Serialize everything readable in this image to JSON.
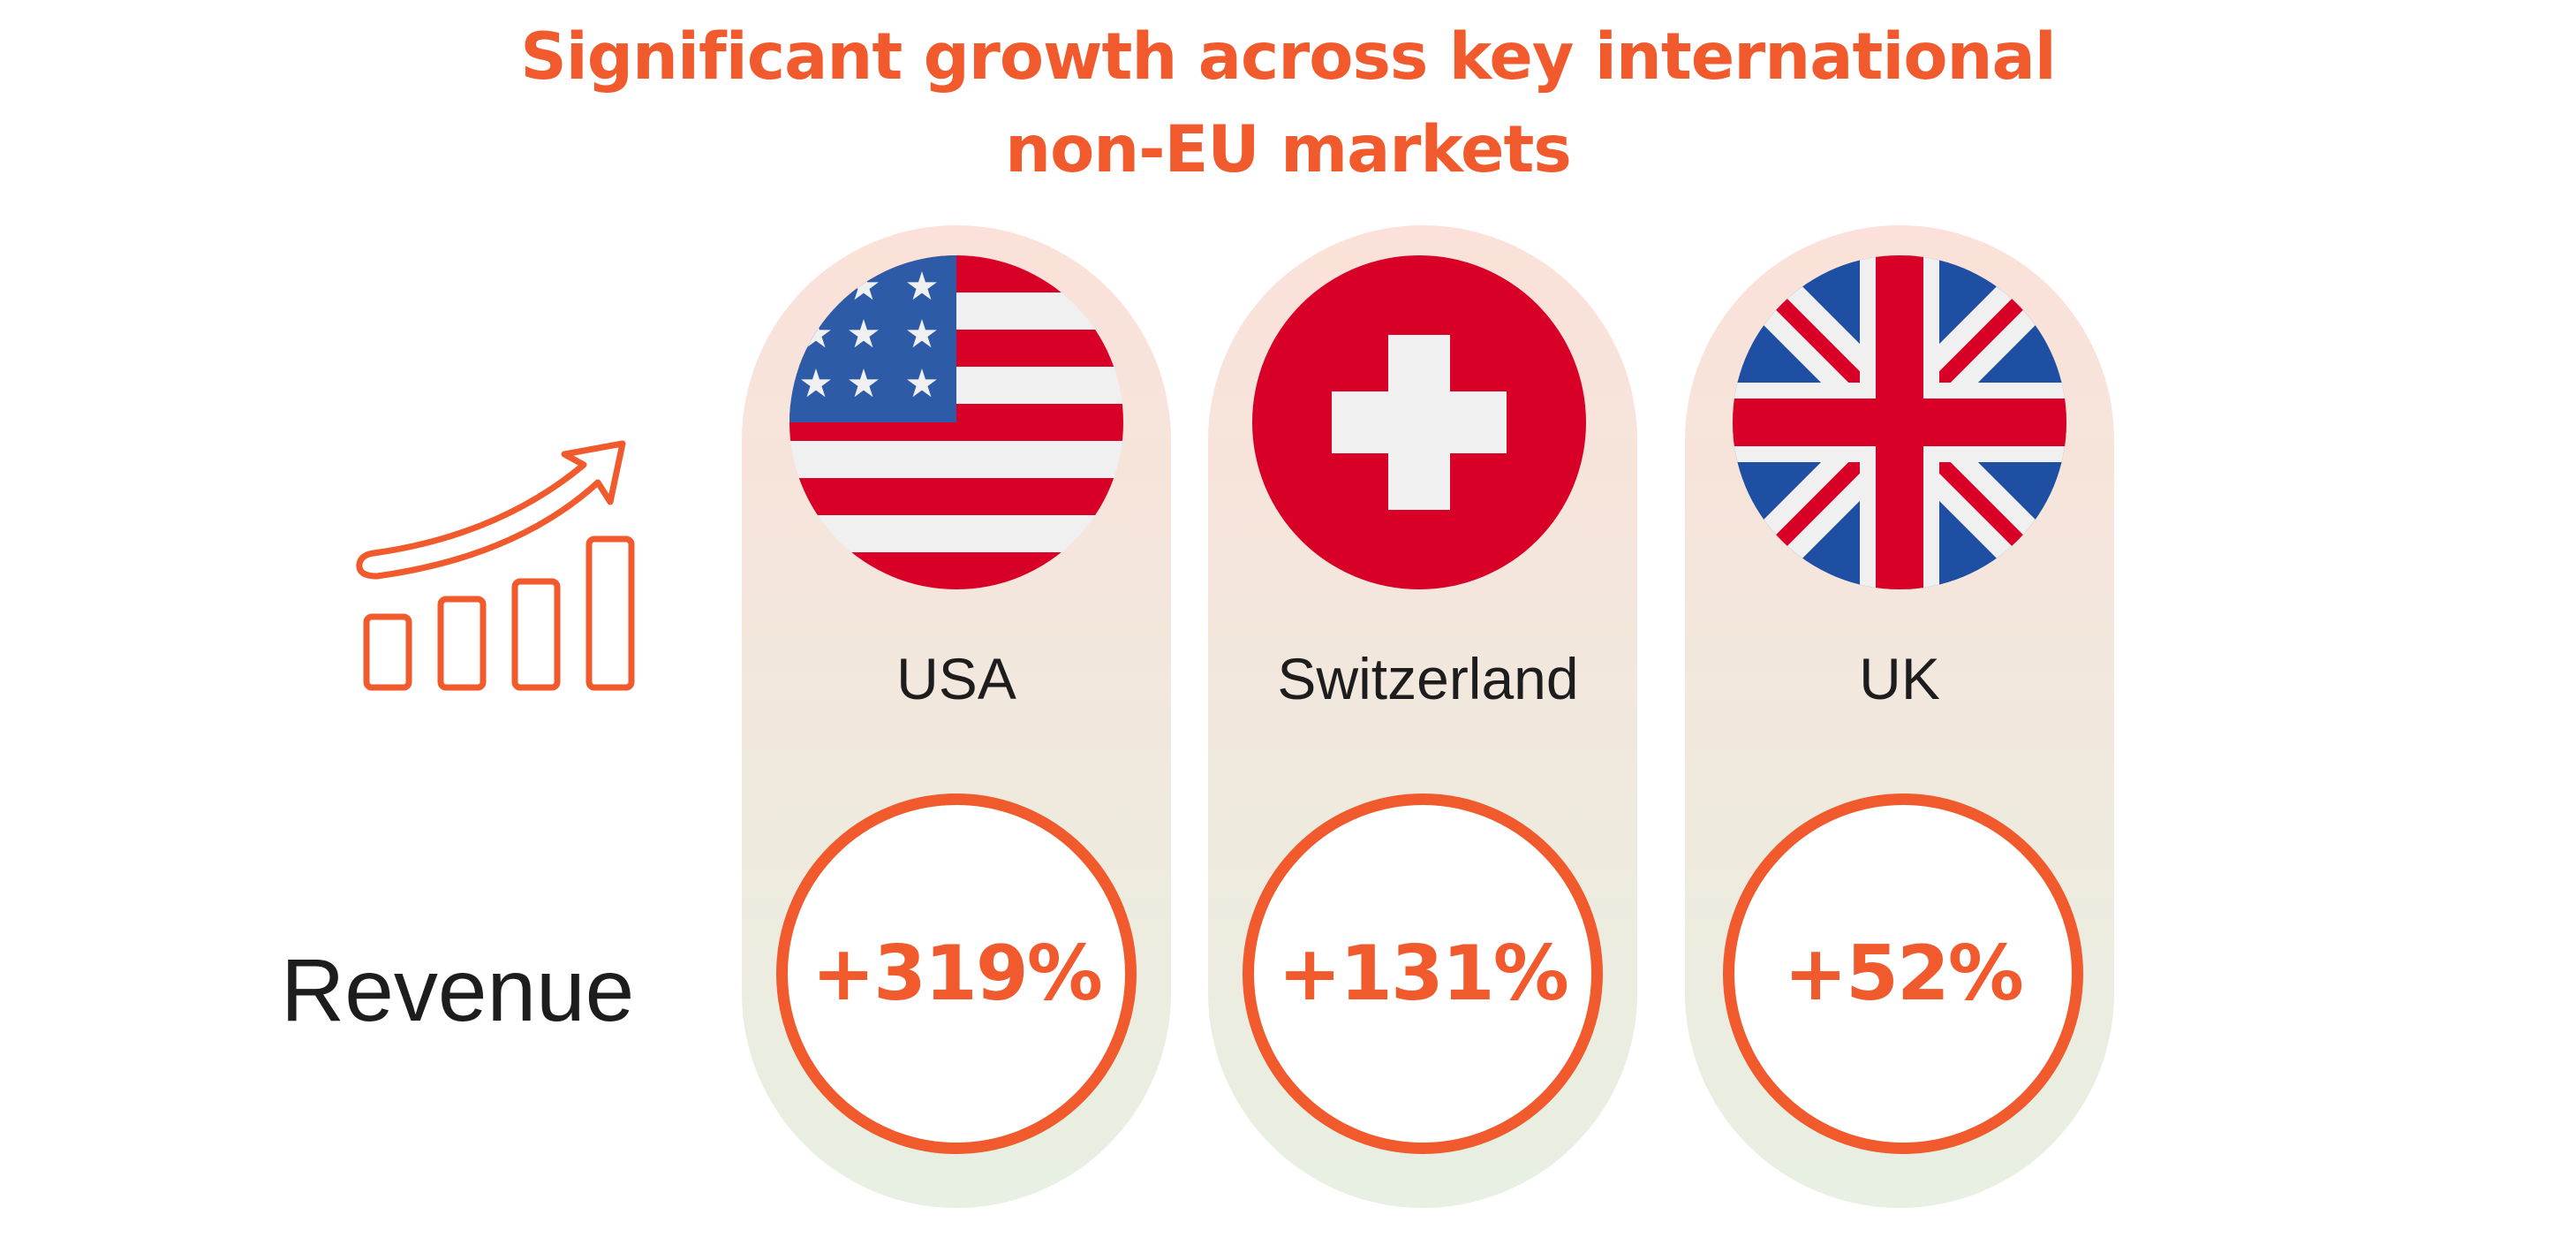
{
  "title": {
    "line1": "Significant growth across key international",
    "line2": "non-EU markets"
  },
  "row_label": "Revenue",
  "markets": [
    {
      "country": "USA",
      "value": "+319%",
      "flag": "usa-flag"
    },
    {
      "country": "Switzerland",
      "value": "+131%",
      "flag": "switzerland-flag"
    },
    {
      "country": "UK",
      "value": "+52%",
      "flag": "uk-flag"
    }
  ],
  "icons": {
    "growth": "growth-chart-arrow-icon"
  },
  "colors": {
    "accent": "#F05A2C",
    "text": "#1d1d1d",
    "pill_top": "#FBE1D9",
    "pill_bottom": "#E7F0E2",
    "usa_blue": "#2D5BA8",
    "flag_red": "#D80027",
    "uk_blue": "#1E4FA3"
  }
}
